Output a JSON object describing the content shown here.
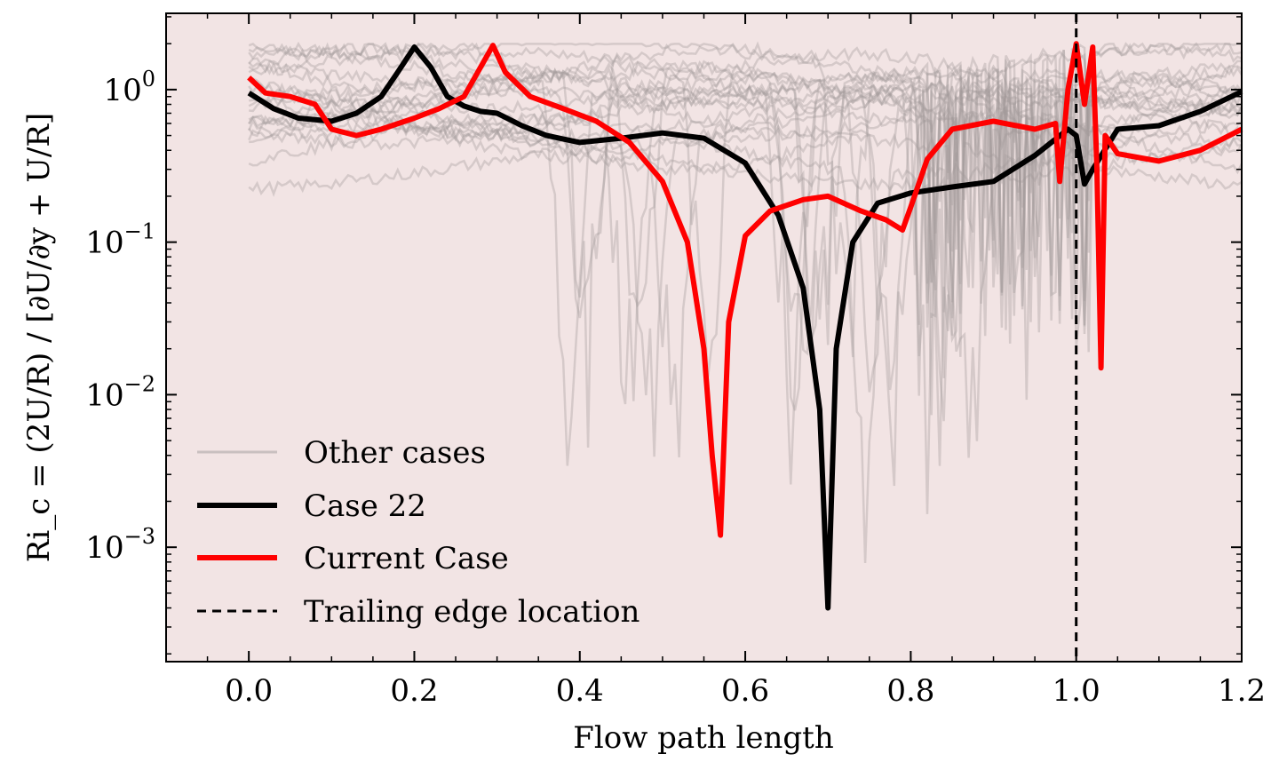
{
  "chart_data": {
    "type": "line",
    "title": "",
    "xlabel": "Flow path length",
    "ylabel": "Ri_c = (2U/R) / [∂U/∂y + U/R]",
    "xlim": [
      -0.1,
      1.2
    ],
    "ylim_log10": [
      -3.75,
      0.5
    ],
    "yscale": "log",
    "x_ticks": [
      "0.0",
      "0.2",
      "0.4",
      "0.6",
      "0.8",
      "1.0",
      "1.2"
    ],
    "y_ticks": [
      {
        "base": "10",
        "exp": "0"
      },
      {
        "base": "10",
        "exp": "−1"
      },
      {
        "base": "10",
        "exp": "−2"
      },
      {
        "base": "10",
        "exp": "−3"
      }
    ],
    "background_color": "#f2e4e4",
    "legend": {
      "placement": "lower-left",
      "entries": [
        {
          "label": "Other cases",
          "color": "#b8b0b0",
          "style": "solid"
        },
        {
          "label": "Case 22",
          "color": "#000000",
          "style": "solid"
        },
        {
          "label": "Current Case",
          "color": "#ff0000",
          "style": "solid"
        },
        {
          "label": "Trailing edge location",
          "color": "#000000",
          "style": "dashed"
        }
      ]
    },
    "trailing_edge_x": 1.0,
    "series": [
      {
        "name": "Case 22",
        "color": "#000000",
        "x": [
          0.0,
          0.03,
          0.06,
          0.1,
          0.13,
          0.16,
          0.18,
          0.2,
          0.22,
          0.24,
          0.26,
          0.28,
          0.3,
          0.33,
          0.36,
          0.4,
          0.45,
          0.5,
          0.55,
          0.6,
          0.64,
          0.67,
          0.69,
          0.7,
          0.71,
          0.73,
          0.76,
          0.8,
          0.85,
          0.9,
          0.95,
          0.99,
          1.0,
          1.01,
          1.02,
          1.05,
          1.1,
          1.15,
          1.2
        ],
        "y": [
          0.95,
          0.75,
          0.65,
          0.62,
          0.7,
          0.9,
          1.3,
          1.9,
          1.4,
          0.9,
          0.78,
          0.72,
          0.7,
          0.58,
          0.5,
          0.45,
          0.48,
          0.52,
          0.48,
          0.33,
          0.15,
          0.05,
          0.008,
          0.0004,
          0.02,
          0.1,
          0.18,
          0.21,
          0.23,
          0.25,
          0.37,
          0.55,
          0.5,
          0.24,
          0.3,
          0.55,
          0.58,
          0.72,
          0.97
        ]
      },
      {
        "name": "Current Case",
        "color": "#ff0000",
        "x": [
          0.0,
          0.02,
          0.05,
          0.08,
          0.1,
          0.13,
          0.16,
          0.2,
          0.23,
          0.26,
          0.28,
          0.295,
          0.31,
          0.34,
          0.38,
          0.42,
          0.46,
          0.5,
          0.53,
          0.55,
          0.56,
          0.57,
          0.58,
          0.6,
          0.63,
          0.67,
          0.7,
          0.74,
          0.77,
          0.79,
          0.8,
          0.82,
          0.85,
          0.9,
          0.95,
          0.975,
          0.98,
          0.99,
          1.0,
          1.01,
          1.02,
          1.025,
          1.03,
          1.035,
          1.05,
          1.1,
          1.15,
          1.2
        ],
        "y": [
          1.2,
          0.95,
          0.9,
          0.8,
          0.55,
          0.5,
          0.55,
          0.65,
          0.75,
          0.9,
          1.4,
          1.95,
          1.3,
          0.9,
          0.75,
          0.62,
          0.45,
          0.25,
          0.1,
          0.02,
          0.004,
          0.0012,
          0.03,
          0.11,
          0.16,
          0.19,
          0.2,
          0.16,
          0.14,
          0.12,
          0.17,
          0.35,
          0.55,
          0.62,
          0.55,
          0.6,
          0.25,
          1.0,
          2.0,
          0.8,
          1.9,
          0.3,
          0.015,
          0.5,
          0.38,
          0.34,
          0.4,
          0.55
        ]
      }
    ]
  }
}
